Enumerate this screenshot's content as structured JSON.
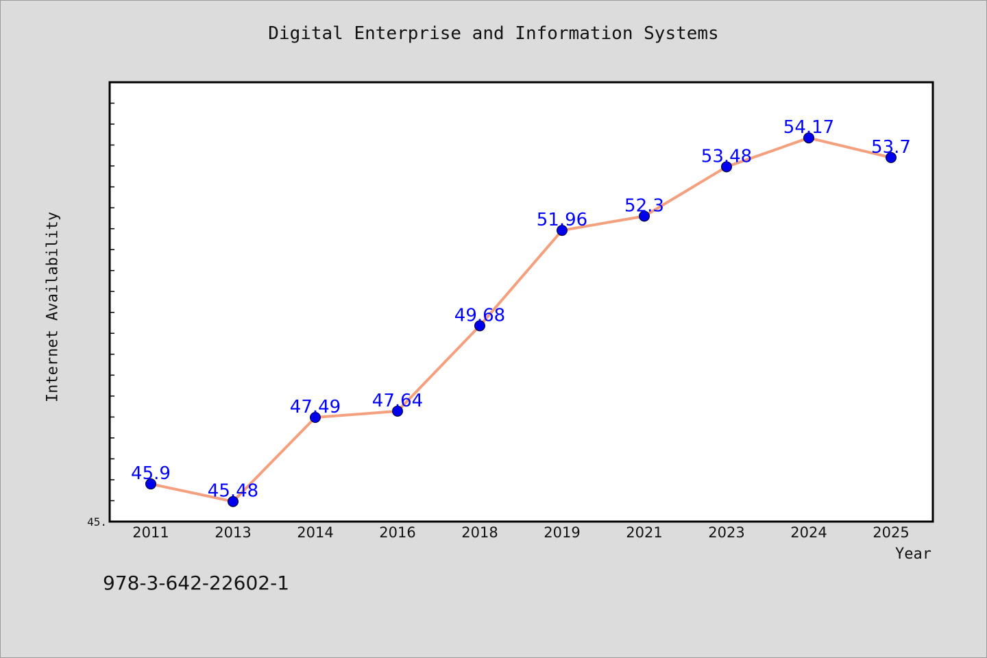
{
  "chart_data": {
    "type": "line",
    "title": "Digital Enterprise and Information Systems",
    "xlabel": "Year",
    "ylabel": "Internet Availability",
    "categories": [
      "2011",
      "2013",
      "2014",
      "2016",
      "2018",
      "2019",
      "2021",
      "2023",
      "2024",
      "2025"
    ],
    "series": [
      {
        "values": [
          45.9,
          45.48,
          47.49,
          47.64,
          49.68,
          51.96,
          52.3,
          53.48,
          54.17,
          53.7
        ],
        "data_labels": [
          "45.9",
          "45.48",
          "47.49",
          "47.64",
          "49.68",
          "51.96",
          "52.3",
          "53.48",
          "54.17",
          "53.7"
        ]
      }
    ],
    "ylim": [
      45.0,
      55.5
    ],
    "y_tick_label": "45.",
    "grid": false,
    "legend": "none",
    "colors": {
      "line": "#f4a07f",
      "marker": "#0000ee",
      "label": "#0000ff",
      "plot_bg": "#ffffff",
      "page_bg": "#dcdcdc"
    }
  },
  "footer": {
    "isbn": "978-3-642-22602-1"
  }
}
